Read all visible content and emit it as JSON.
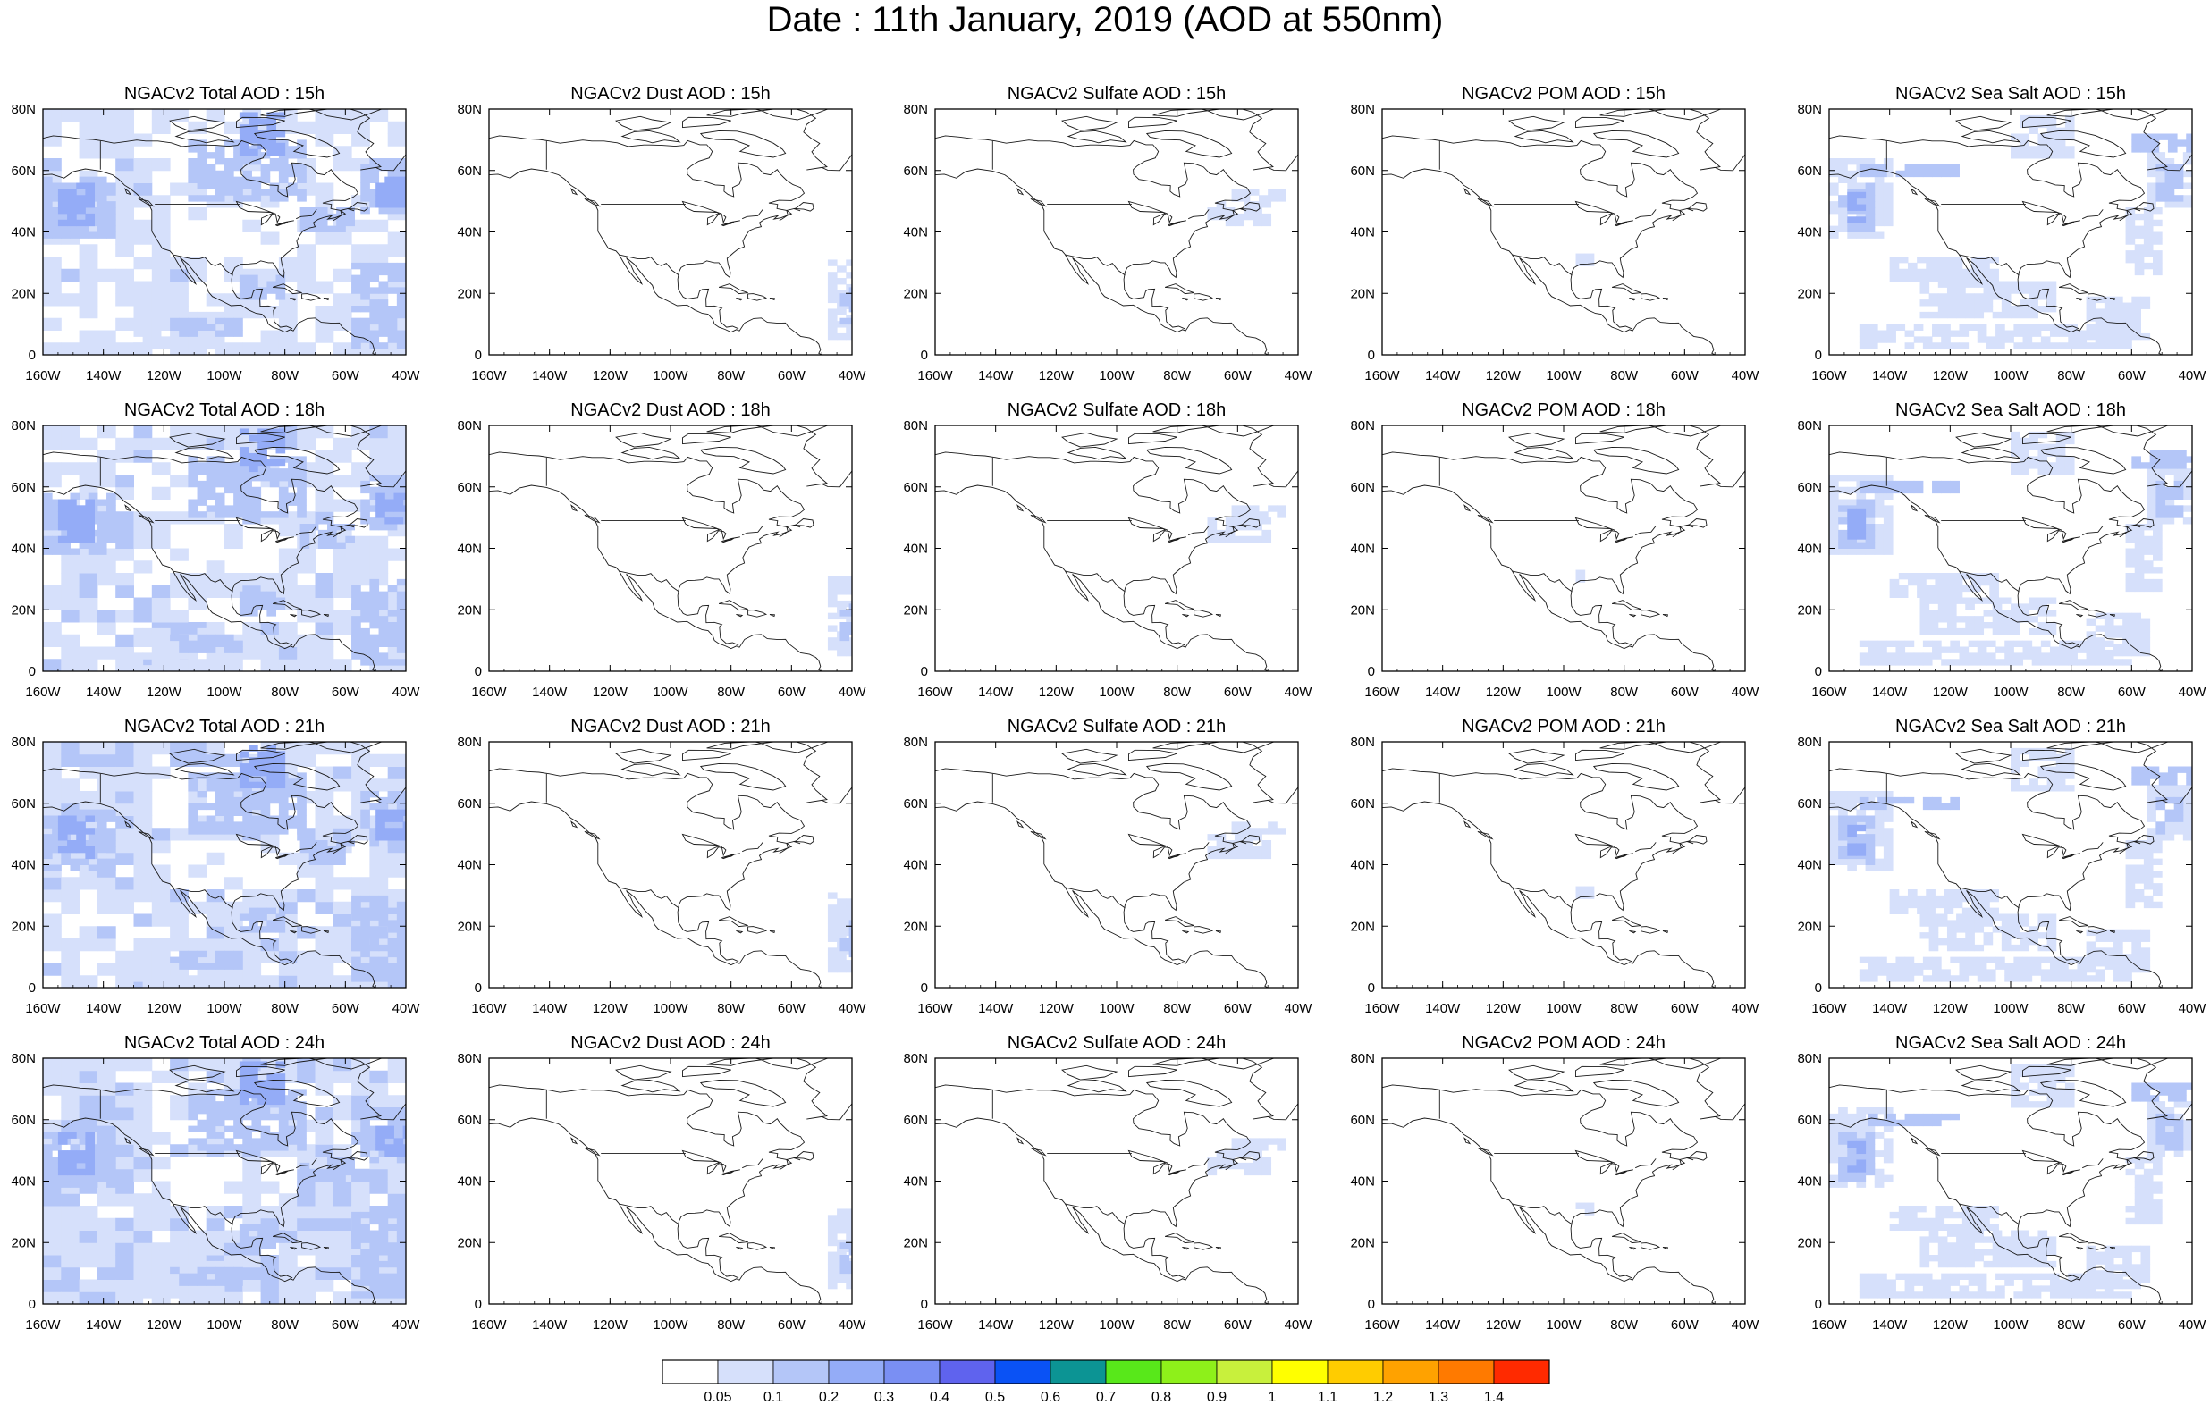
{
  "title": "Date : 11th January, 2019 (AOD at 550nm)",
  "lon_ticks": [
    "160W",
    "140W",
    "120W",
    "100W",
    "80W",
    "60W",
    "40W"
  ],
  "lat_ticks": [
    "0",
    "20N",
    "40N",
    "60N",
    "80N"
  ],
  "rows": [
    {
      "hour": "15h",
      "panels": [
        "NGACv2 Total AOD : 15h",
        "NGACv2 Dust AOD : 15h",
        "NGACv2 Sulfate AOD : 15h",
        "NGACv2 POM AOD : 15h",
        "NGACv2 Sea Salt AOD : 15h"
      ]
    },
    {
      "hour": "18h",
      "panels": [
        "NGACv2 Total AOD : 18h",
        "NGACv2 Dust AOD : 18h",
        "NGACv2 Sulfate AOD : 18h",
        "NGACv2 POM AOD : 18h",
        "NGACv2 Sea Salt AOD : 18h"
      ]
    },
    {
      "hour": "21h",
      "panels": [
        "NGACv2 Total AOD : 21h",
        "NGACv2 Dust AOD : 21h",
        "NGACv2 Sulfate AOD : 21h",
        "NGACv2 POM AOD : 21h",
        "NGACv2 Sea Salt AOD : 21h"
      ]
    },
    {
      "hour": "24h",
      "panels": [
        "NGACv2 Total AOD : 24h",
        "NGACv2 Dust AOD : 24h",
        "NGACv2 Sulfate AOD : 24h",
        "NGACv2 POM AOD : 24h",
        "NGACv2 Sea Salt  AOD : 24h"
      ]
    }
  ],
  "columns": [
    "total",
    "dust",
    "sulfate",
    "pom",
    "seasalt"
  ],
  "colorbar": {
    "labels": [
      "0.05",
      "0.1",
      "0.2",
      "0.3",
      "0.4",
      "0.5",
      "0.6",
      "0.7",
      "0.8",
      "0.9",
      "1",
      "1.1",
      "1.2",
      "1.3",
      "1.4"
    ],
    "colors": [
      "#ffffff",
      "#d6e0fb",
      "#b4c6f8",
      "#94acf7",
      "#7a8ff3",
      "#5f63ee",
      "#0a52f5",
      "#0c9494",
      "#58e81a",
      "#8ef01a",
      "#c8f03c",
      "#ffff00",
      "#ffcc00",
      "#ffa200",
      "#ff7a00",
      "#ff2a00"
    ]
  },
  "colors": {
    "light_blue": "#d6e0fb",
    "mid_blue": "#b4c6f8",
    "deep_blue": "#94acf7",
    "coast": "#1a1a1a"
  }
}
